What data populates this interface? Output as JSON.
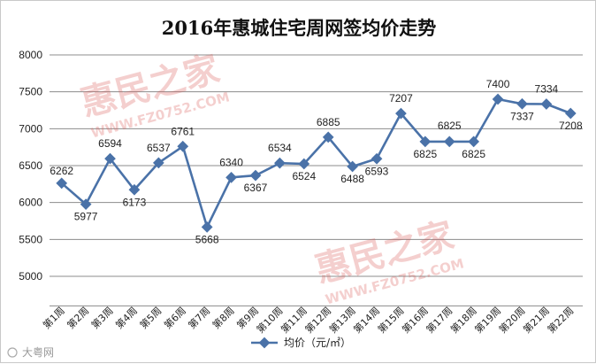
{
  "chart_data": {
    "type": "line",
    "title": "2016年惠城住宅周网签均价走势",
    "categories": [
      "第1周",
      "第2周",
      "第3周",
      "第4周",
      "第5周",
      "第6周",
      "第7周",
      "第8周",
      "第9周",
      "第10周",
      "第11周",
      "第12周",
      "第13周",
      "第14周",
      "第15周",
      "第16周",
      "第17周",
      "第18周",
      "第19周",
      "第20周",
      "第21周",
      "第22周"
    ],
    "series": [
      {
        "name": "均价（元/㎡）",
        "values": [
          6262,
          5977,
          6594,
          6173,
          6537,
          6761,
          5668,
          6340,
          6367,
          6534,
          6524,
          6885,
          6488,
          6593,
          7207,
          6825,
          6825,
          6825,
          7400,
          7337,
          7334,
          7208
        ],
        "color": "#4a72a8"
      }
    ],
    "data_labels": [
      "6262",
      "5977",
      "6594",
      "6173",
      "6537",
      "6761",
      "5668",
      "6340",
      "6367",
      "6534",
      "6524",
      "6885",
      "6488",
      "6593",
      "7207",
      "6825",
      "6825",
      "6825",
      "7400",
      "7337",
      "7334",
      "7208"
    ],
    "yticks": [
      5000,
      5500,
      6000,
      6500,
      7000,
      7500,
      8000
    ],
    "ylim": [
      4600,
      8000
    ],
    "grid": true,
    "legend_position": "bottom"
  },
  "watermark": {
    "brand": "惠民之家",
    "url": "WWW.FZ0752.COM",
    "color": "#d9534f"
  },
  "source": {
    "text": "大粤网"
  }
}
